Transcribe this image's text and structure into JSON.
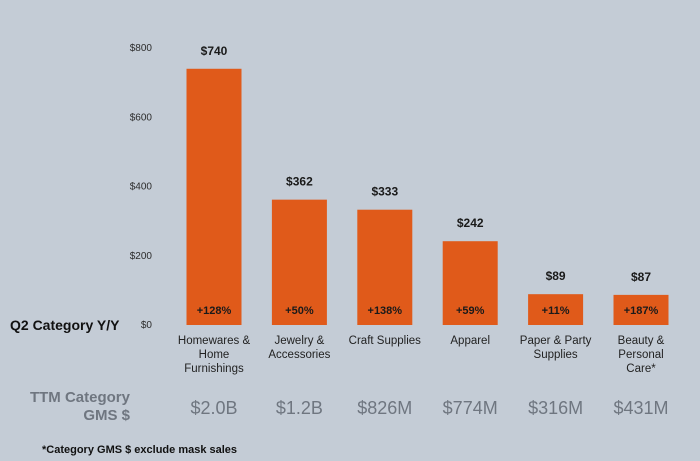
{
  "chart_data": {
    "type": "bar",
    "categories": [
      [
        "Homewares &",
        "Home",
        "Furnishings"
      ],
      [
        "Jewelry &",
        "Accessories"
      ],
      [
        "Craft Supplies"
      ],
      [
        "Apparel"
      ],
      [
        "Paper & Party",
        "Supplies"
      ],
      [
        "Beauty &",
        "Personal",
        "Care*"
      ]
    ],
    "values": [
      740,
      362,
      333,
      242,
      89,
      87
    ],
    "value_labels": [
      "$740",
      "$362",
      "$333",
      "$242",
      "$89",
      "$87"
    ],
    "yoy_labels": [
      "+128%",
      "+50%",
      "+138%",
      "+59%",
      "+11%",
      "+187%"
    ],
    "yoy_row_label": "Q2 Category Y/Y",
    "gms_row_label": [
      "TTM Category",
      "GMS $"
    ],
    "gms_values": [
      "$2.0B",
      "$1.2B",
      "$826M",
      "$774M",
      "$316M",
      "$431M"
    ],
    "yticks": [
      "$0",
      "$200",
      "$400",
      "$600",
      "$800"
    ],
    "ytick_values": [
      0,
      200,
      400,
      600,
      800
    ],
    "ylim": [
      0,
      800
    ],
    "footnote": "*Category GMS $ exclude mask sales",
    "bar_color": "#e05a1a",
    "grid": false,
    "title": "",
    "xlabel": "",
    "ylabel": ""
  }
}
